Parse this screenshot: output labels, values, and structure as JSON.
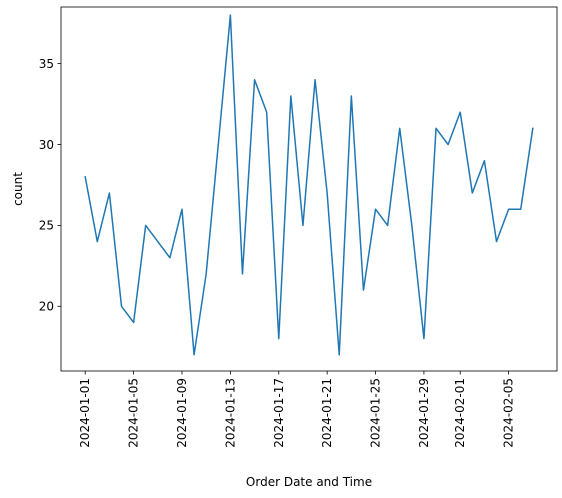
{
  "chart_data": {
    "type": "line",
    "title": "",
    "xlabel": "Order Date and Time",
    "ylabel": "count",
    "grid": false,
    "legend": "none",
    "x_ticks": [
      "2024-01-01",
      "2024-01-05",
      "2024-01-09",
      "2024-01-13",
      "2024-01-17",
      "2024-01-21",
      "2024-01-25",
      "2024-01-29",
      "2024-02-01",
      "2024-02-05"
    ],
    "y_ticks": [
      20,
      25,
      30,
      35
    ],
    "xlim": [
      "2023-12-30",
      "2024-02-09"
    ],
    "ylim": [
      16,
      38.5
    ],
    "series": [
      {
        "color": "#1f77b4",
        "x": [
          "2024-01-01",
          "2024-01-02",
          "2024-01-03",
          "2024-01-04",
          "2024-01-05",
          "2024-01-06",
          "2024-01-07",
          "2024-01-08",
          "2024-01-09",
          "2024-01-10",
          "2024-01-11",
          "2024-01-12",
          "2024-01-13",
          "2024-01-14",
          "2024-01-15",
          "2024-01-16",
          "2024-01-17",
          "2024-01-18",
          "2024-01-19",
          "2024-01-20",
          "2024-01-21",
          "2024-01-22",
          "2024-01-23",
          "2024-01-24",
          "2024-01-25",
          "2024-01-26",
          "2024-01-27",
          "2024-01-28",
          "2024-01-29",
          "2024-01-30",
          "2024-01-31",
          "2024-02-01",
          "2024-02-02",
          "2024-02-03",
          "2024-02-04",
          "2024-02-05",
          "2024-02-06",
          "2024-02-07"
        ],
        "values": [
          28,
          24,
          27,
          20,
          19,
          25,
          24,
          23,
          26,
          17,
          22,
          30,
          38,
          22,
          34,
          32,
          18,
          33,
          25,
          34,
          27,
          17,
          33,
          21,
          26,
          25,
          31,
          25,
          18,
          31,
          30,
          32,
          27,
          29,
          24,
          26,
          26,
          31
        ]
      }
    ]
  }
}
